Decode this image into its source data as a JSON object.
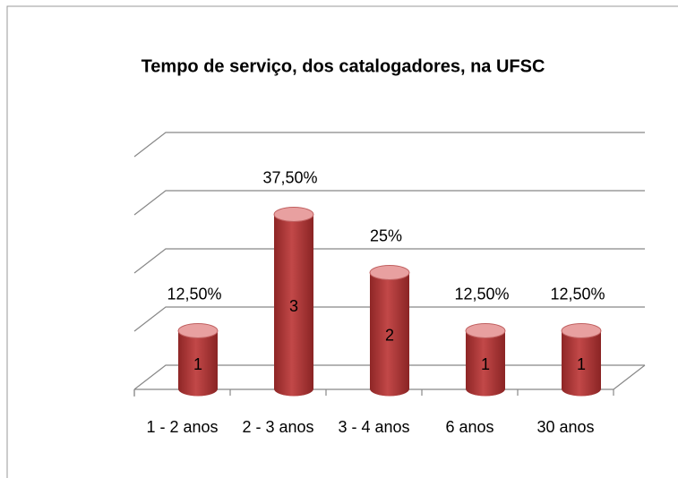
{
  "chart_data": {
    "type": "bar3d",
    "title": "Tempo de serviço, dos catalogadores, na UFSC",
    "categories": [
      "1 - 2 anos",
      "2 - 3 anos",
      "3 - 4 anos",
      "6 anos",
      "30 anos"
    ],
    "values": [
      1,
      3,
      2,
      1,
      1
    ],
    "percent_values": [
      12.5,
      37.5,
      25,
      12.5,
      12.5
    ],
    "percent_labels": [
      "12,50%",
      "37,50%",
      "25%",
      "12,50%",
      "12,50%"
    ],
    "color": "#b03a3a",
    "top_color": "#e8a0a0",
    "ylim": [
      0,
      4
    ],
    "yticks": [
      0,
      1,
      2,
      3,
      4
    ],
    "grid": true
  }
}
